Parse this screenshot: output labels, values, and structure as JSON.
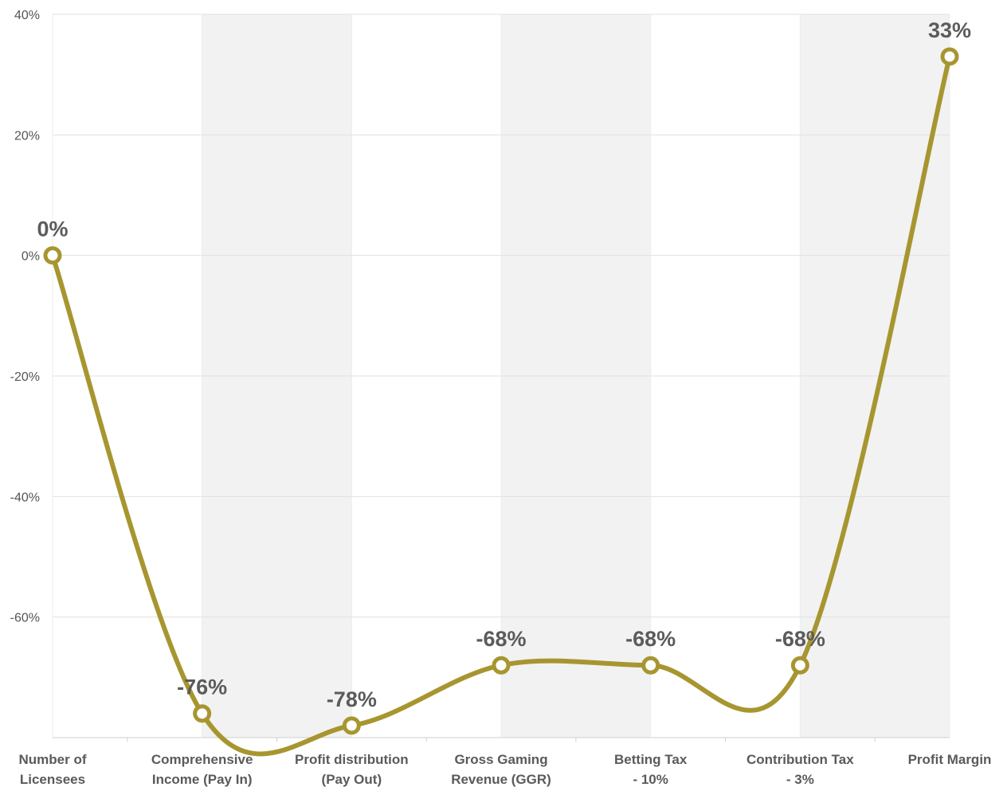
{
  "chart_data": {
    "type": "line",
    "categories": [
      [
        "Number of",
        "Licensees"
      ],
      [
        "Comprehensive",
        "Income (Pay In)"
      ],
      [
        "Profit distribution",
        "(Pay Out)"
      ],
      [
        "Gross Gaming",
        "Revenue (GGR)"
      ],
      [
        "Betting Tax",
        "- 10%"
      ],
      [
        "Contribution Tax",
        "- 3%"
      ],
      [
        "Profit Margin"
      ]
    ],
    "values": [
      0,
      -76,
      -78,
      -68,
      -68,
      -68,
      33
    ],
    "data_labels": [
      "0%",
      "-76%",
      "-78%",
      "-68%",
      "-68%",
      "-68%",
      "33%"
    ],
    "ylim": [
      -80,
      40
    ],
    "yticks": [
      40,
      20,
      0,
      -20,
      -40,
      -60
    ],
    "ytick_labels": [
      "40%",
      "20%",
      "0%",
      "-20%",
      "-40%",
      "-60%"
    ],
    "grid": true,
    "smooth": true,
    "colors": {
      "line": "#a79630",
      "band": "#f2f2f2",
      "grid": "#e0e0e0"
    }
  }
}
